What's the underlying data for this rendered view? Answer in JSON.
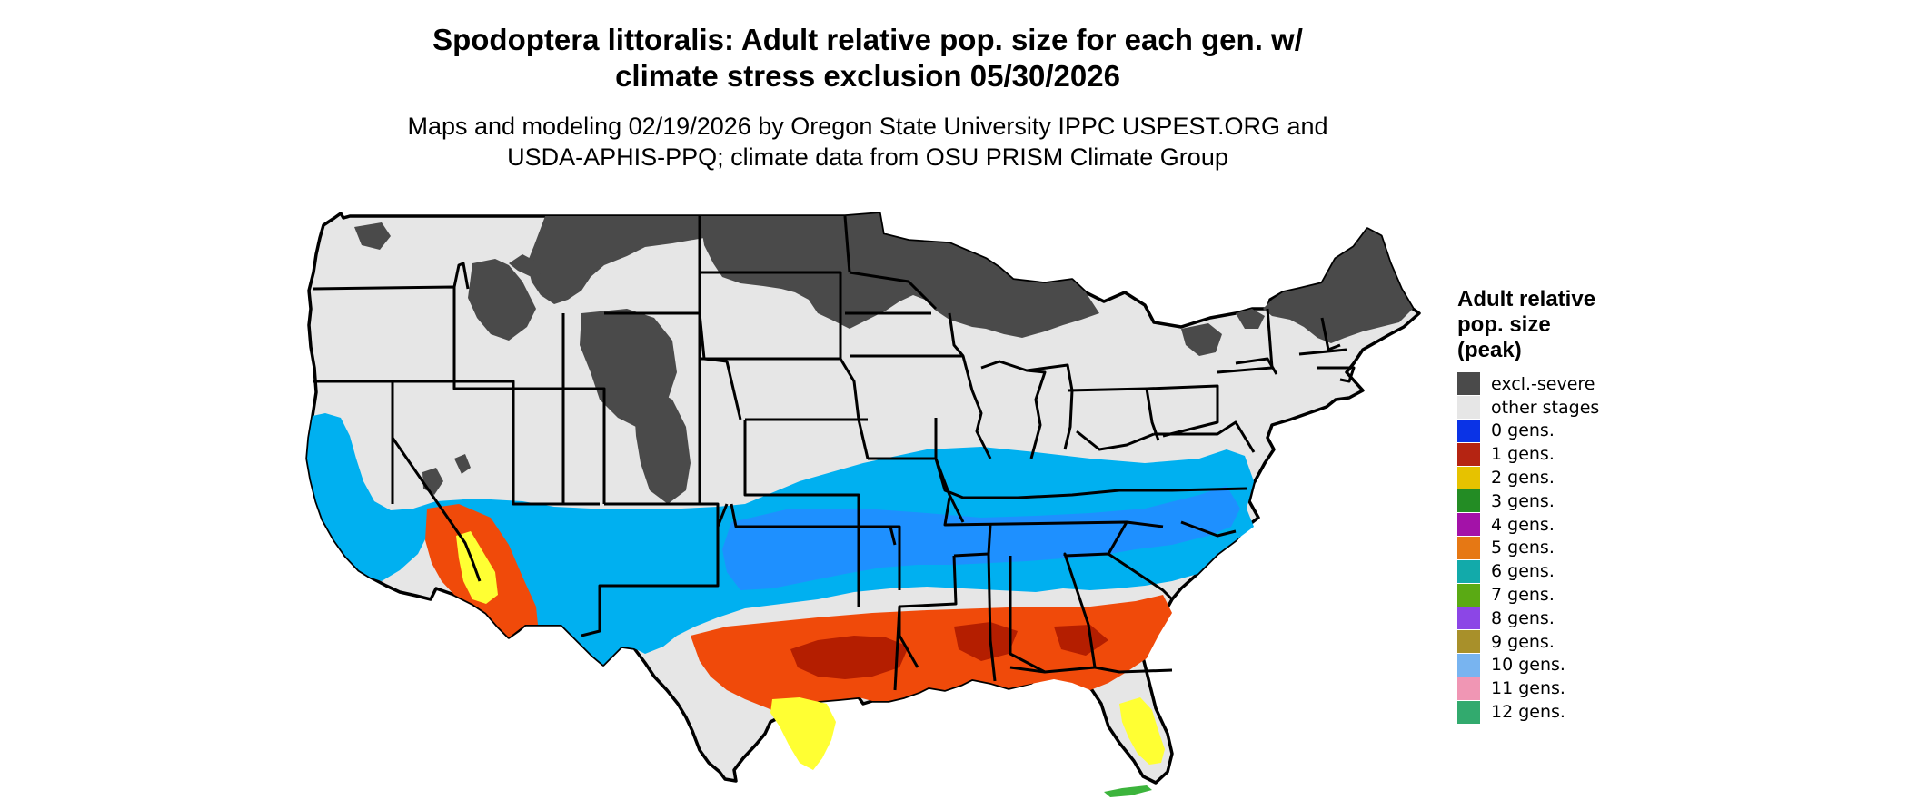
{
  "title_line1": "Spodoptera littoralis: Adult relative pop. size for each gen. w/",
  "title_line2": "climate stress exclusion 05/30/2026",
  "subtitle_line1": "Maps and modeling 02/19/2026 by Oregon State University IPPC USPEST.ORG and",
  "subtitle_line2": "USDA-APHIS-PPQ; climate data from OSU PRISM Climate Group",
  "legend": {
    "title_line1": "Adult relative",
    "title_line2": "pop. size",
    "title_line3": "(peak)",
    "items": [
      {
        "label": "excl.-severe",
        "color": "#4a4a4a"
      },
      {
        "label": "other stages",
        "color": "#e6e6e6"
      },
      {
        "label": "0 gens.",
        "color": "#0a33e6"
      },
      {
        "label": "1 gens.",
        "color": "#b52412"
      },
      {
        "label": "2 gens.",
        "color": "#e6c200"
      },
      {
        "label": "3 gens.",
        "color": "#238c24"
      },
      {
        "label": "4 gens.",
        "color": "#a312a8"
      },
      {
        "label": "5 gens.",
        "color": "#e67814"
      },
      {
        "label": "6 gens.",
        "color": "#12aaaa"
      },
      {
        "label": "7 gens.",
        "color": "#5aaa14"
      },
      {
        "label": "8 gens.",
        "color": "#8c46e6"
      },
      {
        "label": "9 gens.",
        "color": "#a8902a"
      },
      {
        "label": "10 gens.",
        "color": "#78b4f0"
      },
      {
        "label": "11 gens.",
        "color": "#f096b4"
      },
      {
        "label": "12 gens.",
        "color": "#32aa6e"
      }
    ]
  },
  "map_colors": {
    "background_land": "#e6e6e6",
    "excluded": "#4a4a4a",
    "light_blue": "#00b0f0",
    "mid_blue": "#1e90ff",
    "red_orange": "#f04a0a",
    "dark_red": "#b41e00",
    "yellow": "#ffff33",
    "green": "#3cb43c",
    "border": "#000000"
  }
}
